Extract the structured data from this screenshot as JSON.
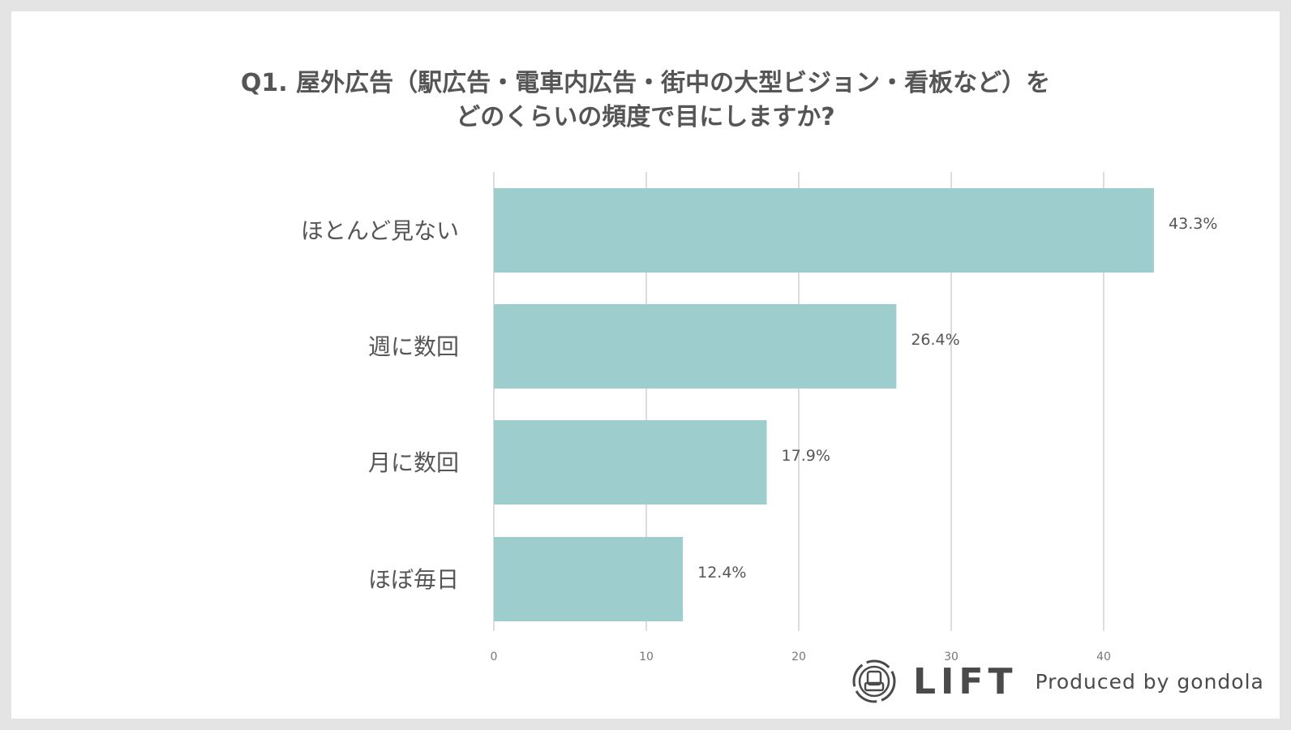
{
  "chart_data": {
    "type": "bar",
    "orientation": "horizontal",
    "title_lines": [
      "Q1. 屋外広告（駅広告・電車内広告・街中の大型ビジョン・看板など）を",
      "どのくらいの頻度で目にしますか?"
    ],
    "categories": [
      "ほとんど見ない",
      "週に数回",
      "月に数回",
      "ほぼ毎日"
    ],
    "values": [
      43.3,
      26.4,
      17.9,
      12.4
    ],
    "data_labels": [
      "43.3%",
      "26.4%",
      "17.9%",
      "12.4%"
    ],
    "xticks": [
      0,
      10,
      20,
      30,
      40
    ],
    "xlim": [
      0,
      45
    ],
    "grid": true,
    "bar_color": "#9ecdcd"
  },
  "footer": {
    "brand": "LIFT",
    "produced_by": "Produced by gondola",
    "logo_icon": "chair-in-circle-icon"
  }
}
